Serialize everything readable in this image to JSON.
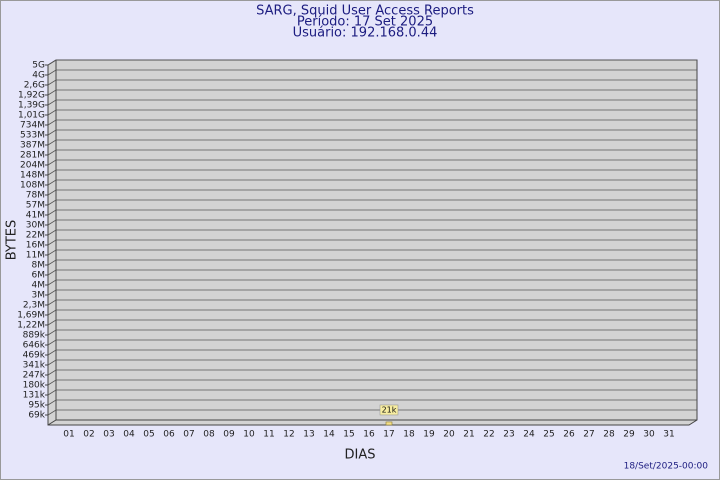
{
  "chart_data": {
    "type": "bar",
    "title": "SARG, Squid User Access Reports",
    "subtitle": [
      "Período: 17 Set 2025",
      "Usuário: 192.168.0.44"
    ],
    "xlabel": "DIAS",
    "ylabel": "BYTES",
    "footer": "18/Set/2025-00:00",
    "categories": [
      "01",
      "02",
      "03",
      "04",
      "05",
      "06",
      "07",
      "08",
      "09",
      "10",
      "11",
      "12",
      "13",
      "14",
      "15",
      "16",
      "17",
      "18",
      "19",
      "20",
      "21",
      "22",
      "23",
      "24",
      "25",
      "26",
      "27",
      "28",
      "29",
      "30",
      "31"
    ],
    "values": [
      null,
      null,
      null,
      null,
      null,
      null,
      null,
      null,
      null,
      null,
      null,
      null,
      null,
      null,
      null,
      null,
      21000,
      null,
      null,
      null,
      null,
      null,
      null,
      null,
      null,
      null,
      null,
      null,
      null,
      null,
      null
    ],
    "value_labels": [
      null,
      null,
      null,
      null,
      null,
      null,
      null,
      null,
      null,
      null,
      null,
      null,
      null,
      null,
      null,
      null,
      "21k",
      null,
      null,
      null,
      null,
      null,
      null,
      null,
      null,
      null,
      null,
      null,
      null,
      null,
      null
    ],
    "color": "#f5e08a",
    "ylim": [
      0,
      5000000000
    ],
    "yticks": [
      {
        "value": 69000,
        "label": "69k"
      },
      {
        "value": 95000,
        "label": "95k"
      },
      {
        "value": 131000,
        "label": "131k"
      },
      {
        "value": 180000,
        "label": "180k"
      },
      {
        "value": 247000,
        "label": "247k"
      },
      {
        "value": 341000,
        "label": "341k"
      },
      {
        "value": 469000,
        "label": "469k"
      },
      {
        "value": 646000,
        "label": "646k"
      },
      {
        "value": 889000,
        "label": "889k"
      },
      {
        "value": 1220000,
        "label": "1,22M"
      },
      {
        "value": 1690000,
        "label": "1,69M"
      },
      {
        "value": 2300000,
        "label": "2,3M"
      },
      {
        "value": 3000000,
        "label": "3M"
      },
      {
        "value": 4000000,
        "label": "4M"
      },
      {
        "value": 6000000,
        "label": "6M"
      },
      {
        "value": 8000000,
        "label": "8M"
      },
      {
        "value": 11000000,
        "label": "11M"
      },
      {
        "value": 16000000,
        "label": "16M"
      },
      {
        "value": 22000000,
        "label": "22M"
      },
      {
        "value": 30000000,
        "label": "30M"
      },
      {
        "value": 41000000,
        "label": "41M"
      },
      {
        "value": 57000000,
        "label": "57M"
      },
      {
        "value": 78000000,
        "label": "78M"
      },
      {
        "value": 108000000,
        "label": "108M"
      },
      {
        "value": 148000000,
        "label": "148M"
      },
      {
        "value": 204000000,
        "label": "204M"
      },
      {
        "value": 281000000,
        "label": "281M"
      },
      {
        "value": 387000000,
        "label": "387M"
      },
      {
        "value": 533000000,
        "label": "533M"
      },
      {
        "value": 734000000,
        "label": "734M"
      },
      {
        "value": 1010000000,
        "label": "1,01G"
      },
      {
        "value": 1390000000,
        "label": "1,39G"
      },
      {
        "value": 1920000000,
        "label": "1,92G"
      },
      {
        "value": 2600000000,
        "label": "2,6G"
      },
      {
        "value": 4000000000,
        "label": "4G"
      },
      {
        "value": 5000000000,
        "label": "5G"
      }
    ],
    "grid": true
  }
}
